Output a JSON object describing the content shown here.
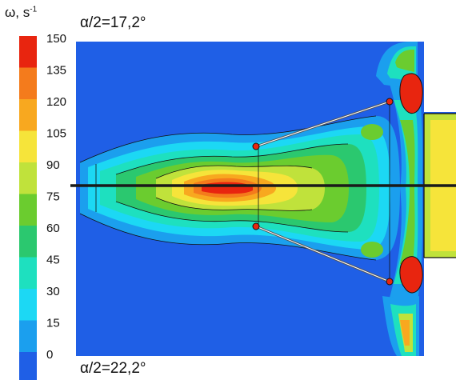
{
  "colorbar": {
    "symbol": "ω, s",
    "exponent": "-1",
    "ticks": [
      "150",
      "135",
      "120",
      "105",
      "90",
      "75",
      "60",
      "45",
      "30",
      "15",
      "0"
    ],
    "colors": [
      "#e8250f",
      "#f47b1c",
      "#f8a81f",
      "#f6e43a",
      "#c0e23b",
      "#6bcc2f",
      "#2bc86f",
      "#1ee0bf",
      "#1cd8f4",
      "#1b9fee",
      "#1f5fe6"
    ]
  },
  "annotations": {
    "top_angle": "α/2=17,2°",
    "bottom_angle": "α/2=22,2°"
  },
  "chart_data": {
    "type": "heatmap",
    "quantity": "ω",
    "unit": "s-1",
    "color_range": [
      0,
      150
    ],
    "levels": [
      0,
      15,
      30,
      45,
      60,
      75,
      90,
      105,
      120,
      135,
      150
    ],
    "legend_position": "left",
    "annotations": [
      "α/2=17,2°",
      "α/2=22,2°"
    ],
    "grid": false
  }
}
